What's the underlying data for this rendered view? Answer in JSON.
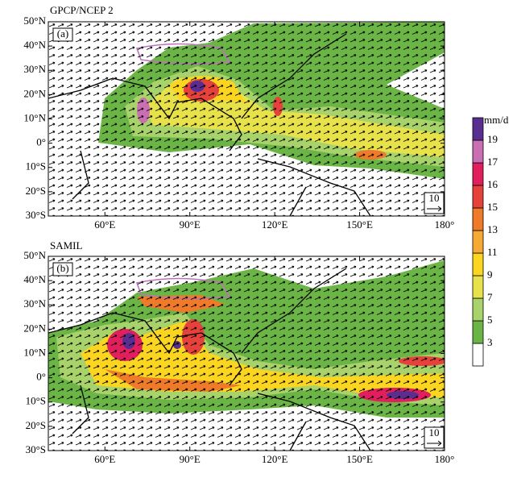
{
  "panels": [
    {
      "title": "GPCP/NCEP 2",
      "label": "(a)",
      "ref_vector": "10"
    },
    {
      "title": "SAMIL",
      "label": "(b)",
      "ref_vector": "10"
    }
  ],
  "xlim": [
    40,
    180
  ],
  "ylim": [
    -30,
    50
  ],
  "xticks": [
    {
      "value": 60,
      "label": "60°E"
    },
    {
      "value": 90,
      "label": "90°E"
    },
    {
      "value": 120,
      "label": "120°E"
    },
    {
      "value": 150,
      "label": "150°E"
    },
    {
      "value": 180,
      "label": "180°"
    }
  ],
  "yticks": [
    {
      "value": 50,
      "label": "50°N"
    },
    {
      "value": 40,
      "label": "40°N"
    },
    {
      "value": 30,
      "label": "30°N"
    },
    {
      "value": 20,
      "label": "20°N"
    },
    {
      "value": 10,
      "label": "10°N"
    },
    {
      "value": 0,
      "label": "0°"
    },
    {
      "value": -10,
      "label": "10°S"
    },
    {
      "value": -20,
      "label": "20°S"
    },
    {
      "value": -30,
      "label": "30°S"
    }
  ],
  "colorbar": {
    "unit": "mm/d",
    "levels": [
      3,
      5,
      7,
      9,
      11,
      13,
      15,
      16,
      17,
      19
    ],
    "colors": [
      "#ffffff",
      "#6ab545",
      "#a8d26a",
      "#e8e24a",
      "#fbd51f",
      "#f7a935",
      "#ee7a2a",
      "#e6413a",
      "#e21f5d",
      "#c96fb2",
      "#5a2e91"
    ]
  }
}
